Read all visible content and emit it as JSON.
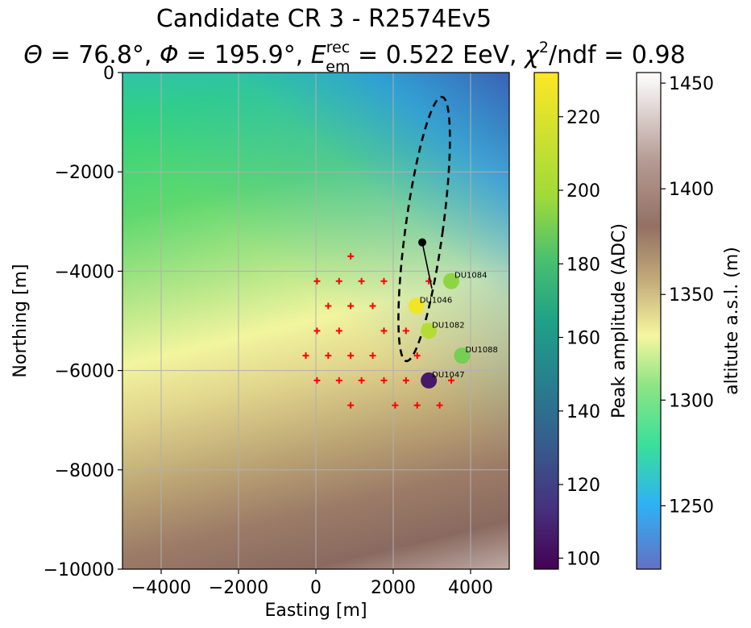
{
  "chart_data": {
    "type": "scatter",
    "title": "Candidate CR 3 - R2574Ev5",
    "subtitle": {
      "theta_sym": "Θ",
      "theta_val": " = 76.8°, ",
      "phi_sym": "Φ",
      "phi_val": " = 195.9°, ",
      "e_sym": "E",
      "e_sup": "rec",
      "e_sub": "em",
      "e_val": " = 0.522 EeV, ",
      "chi_sym": "χ",
      "chi_sup": "2",
      "chi_val": "/ndf = 0.98"
    },
    "xlabel": "Easting [m]",
    "ylabel": "Northing [m]",
    "xlim": [
      -5000,
      5000
    ],
    "ylim": [
      -10000,
      0
    ],
    "xticks": [
      -4000,
      -2000,
      0,
      2000,
      4000
    ],
    "yticks": [
      0,
      -2000,
      -4000,
      -6000,
      -8000,
      -10000
    ],
    "xtick_labels": [
      "−4000",
      "−2000",
      "0",
      "2000",
      "4000"
    ],
    "ytick_labels": [
      "0",
      "−2000",
      "−4000",
      "−6000",
      "−8000",
      "−10000"
    ],
    "grid": true,
    "antennas": [
      [
        900,
        -3700
      ],
      [
        30,
        -4200
      ],
      [
        600,
        -4200
      ],
      [
        1180,
        -4200
      ],
      [
        1760,
        -4200
      ],
      [
        2920,
        -4200
      ],
      [
        3500,
        -4200
      ],
      [
        320,
        -4700
      ],
      [
        900,
        -4700
      ],
      [
        1470,
        -4700
      ],
      [
        2600,
        -4700
      ],
      [
        30,
        -5200
      ],
      [
        600,
        -5200
      ],
      [
        1760,
        -5200
      ],
      [
        2330,
        -5200
      ],
      [
        2920,
        -5200
      ],
      [
        -260,
        -5700
      ],
      [
        320,
        -5700
      ],
      [
        900,
        -5700
      ],
      [
        1470,
        -5700
      ],
      [
        2620,
        -5700
      ],
      [
        3780,
        -5700
      ],
      [
        30,
        -6200
      ],
      [
        600,
        -6200
      ],
      [
        1180,
        -6200
      ],
      [
        1760,
        -6200
      ],
      [
        2330,
        -6200
      ],
      [
        2920,
        -6200
      ],
      [
        3500,
        -6200
      ],
      [
        900,
        -6700
      ],
      [
        2050,
        -6700
      ],
      [
        2620,
        -6700
      ],
      [
        3200,
        -6700
      ]
    ],
    "triggered": [
      {
        "id": "DU1084",
        "x": 3500,
        "y": -4200,
        "adc": 195
      },
      {
        "id": "DU1046",
        "x": 2600,
        "y": -4700,
        "adc": 228
      },
      {
        "id": "DU1082",
        "x": 2920,
        "y": -5200,
        "adc": 205
      },
      {
        "id": "DU1088",
        "x": 3780,
        "y": -5700,
        "adc": 190
      },
      {
        "id": "DU1047",
        "x": 2920,
        "y": -6200,
        "adc": 105
      }
    ],
    "core_reco": {
      "x": 2750,
      "y": -3420
    },
    "direction_tip": {
      "x": 3000,
      "y": -4350
    },
    "ellipse": {
      "cx": 2800,
      "cy": -3150,
      "rx": 480,
      "ry": 2700,
      "angle_deg": -10
    },
    "colorbar_adc": {
      "label": "Peak amplitude (ADC)",
      "range": [
        97,
        232
      ],
      "ticks": [
        100,
        120,
        140,
        160,
        180,
        200,
        220
      ],
      "tick_labels": [
        "100",
        "120",
        "140",
        "160",
        "180",
        "200",
        "220"
      ]
    },
    "colorbar_alt": {
      "label": "altitute a.s.l. (m)",
      "range": [
        1220,
        1455
      ],
      "ticks": [
        1250,
        1300,
        1350,
        1400,
        1450
      ],
      "tick_labels": [
        "1250",
        "1300",
        "1350",
        "1400",
        "1450"
      ]
    }
  }
}
